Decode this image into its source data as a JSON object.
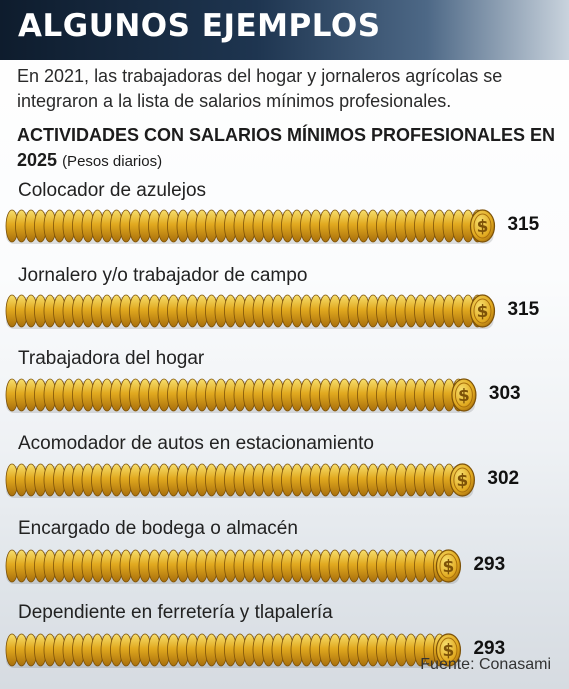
{
  "header": {
    "title": "ALGUNOS EJEMPLOS",
    "intro": "En 2021, las trabajadoras del hogar y jornaleros agrícolas se integraron a la lista de salarios mínimos profesionales.",
    "subtitle": "ACTIVIDADES CON SALARIOS MÍNIMOS PROFESIONALES EN 2025",
    "unit": "(Pesos diarios)"
  },
  "chart_data": {
    "type": "bar",
    "title": "ACTIVIDADES CON SALARIOS MÍNIMOS PROFESIONALES EN 2025",
    "unit": "(Pesos diarios)",
    "categories": [
      "Colocador de azulejos",
      "Jornalero y/o trabajador de campo",
      "Trabajadora del hogar",
      "Acomodador de autos en estacionamiento",
      "Encargado de bodega o almacén",
      "Dependiente en ferretería y tlapalería"
    ],
    "values": [
      315,
      315,
      303,
      302,
      293,
      293
    ],
    "bar_style": "stacked gold coins with dollar-sign end coin",
    "colors": {
      "coin_light": "#f7df6e",
      "coin_mid": "#e1a91f",
      "coin_dark": "#a86f0c",
      "coin_edge": "#7d5208"
    }
  },
  "footer": {
    "source": "Fuente: Conasami"
  }
}
